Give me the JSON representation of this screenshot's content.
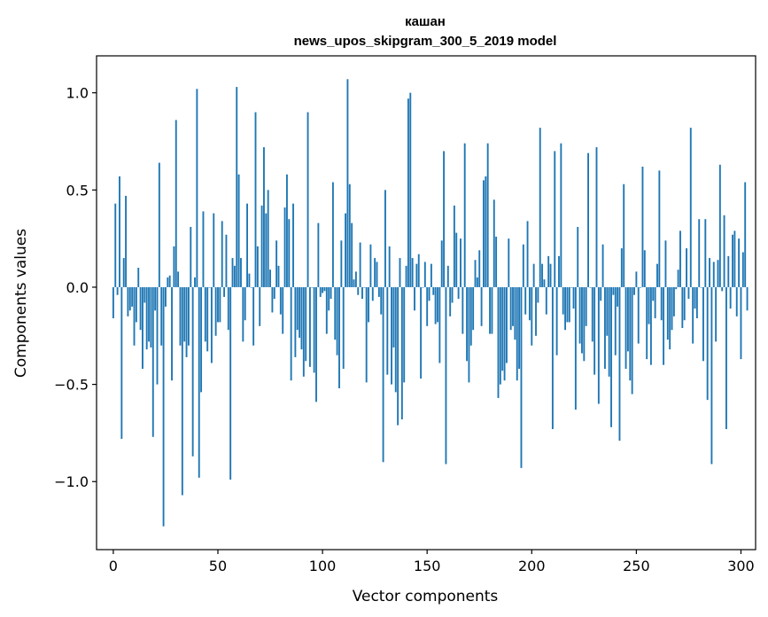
{
  "chart_data": {
    "type": "bar",
    "title_line1": "кашан",
    "title_line2": "news_upos_skipgram_300_5_2019 model",
    "xlabel": "Vector components",
    "ylabel": "Components values",
    "xlim": [
      -8,
      307
    ],
    "ylim": [
      -1.35,
      1.19
    ],
    "xticks": [
      0,
      50,
      100,
      150,
      200,
      250,
      300
    ],
    "xtick_labels": [
      "0",
      "50",
      "100",
      "150",
      "200",
      "250",
      "300"
    ],
    "yticks": [
      -1.0,
      -0.5,
      0.0,
      0.5,
      1.0
    ],
    "ytick_labels": [
      "−1.0",
      "−0.5",
      "0.0",
      "0.5",
      "1.0"
    ],
    "color": "#1f77b4",
    "values": [
      -0.16,
      0.43,
      -0.04,
      0.57,
      -0.78,
      0.15,
      0.47,
      -0.15,
      -0.12,
      -0.1,
      -0.3,
      -0.18,
      0.1,
      -0.22,
      -0.42,
      -0.08,
      -0.32,
      -0.28,
      -0.31,
      -0.77,
      -0.12,
      -0.5,
      0.64,
      -0.3,
      -1.23,
      -0.1,
      0.05,
      0.06,
      -0.48,
      0.21,
      0.86,
      0.08,
      -0.3,
      -1.07,
      -0.28,
      -0.36,
      -0.3,
      0.31,
      -0.87,
      0.05,
      1.02,
      -0.98,
      -0.54,
      0.39,
      -0.28,
      -0.33,
      0.0,
      -0.39,
      0.38,
      -0.25,
      -0.18,
      -0.18,
      0.34,
      -0.05,
      0.27,
      -0.22,
      -0.99,
      0.15,
      0.11,
      1.03,
      0.58,
      0.15,
      -0.28,
      -0.17,
      0.43,
      0.07,
      0.0,
      -0.3,
      0.9,
      0.21,
      -0.2,
      0.42,
      0.72,
      0.38,
      0.5,
      0.09,
      -0.13,
      -0.06,
      0.24,
      0.11,
      -0.14,
      -0.24,
      0.41,
      0.58,
      0.35,
      -0.48,
      0.43,
      -0.36,
      -0.22,
      -0.26,
      -0.32,
      -0.46,
      -0.38,
      0.9,
      -0.41,
      0.0,
      -0.44,
      -0.59,
      0.33,
      -0.05,
      -0.03,
      -0.02,
      -0.24,
      -0.12,
      -0.06,
      0.54,
      -0.27,
      -0.35,
      -0.52,
      0.24,
      -0.42,
      0.38,
      1.07,
      0.53,
      0.33,
      0.04,
      0.08,
      -0.04,
      0.23,
      -0.06,
      0.0,
      -0.49,
      -0.18,
      0.22,
      -0.07,
      0.15,
      0.13,
      -0.05,
      -0.14,
      -0.9,
      0.5,
      -0.45,
      0.21,
      -0.5,
      -0.31,
      -0.54,
      -0.71,
      0.15,
      -0.68,
      -0.49,
      0.11,
      0.97,
      1.0,
      0.15,
      -0.12,
      0.12,
      0.17,
      -0.47,
      0.0,
      0.13,
      -0.2,
      -0.07,
      0.12,
      -0.04,
      -0.19,
      -0.18,
      -0.39,
      0.24,
      0.7,
      -0.91,
      0.11,
      -0.15,
      -0.08,
      0.42,
      0.28,
      -0.06,
      0.25,
      -0.24,
      0.74,
      -0.38,
      -0.49,
      -0.3,
      -0.22,
      0.14,
      0.05,
      0.19,
      -0.2,
      0.55,
      0.57,
      0.74,
      -0.24,
      -0.24,
      0.45,
      0.26,
      -0.57,
      -0.5,
      -0.43,
      -0.48,
      -0.39,
      0.25,
      -0.22,
      -0.2,
      -0.27,
      -0.48,
      -0.42,
      -0.93,
      0.22,
      -0.14,
      0.34,
      -0.17,
      -0.3,
      0.12,
      -0.25,
      -0.08,
      0.82,
      0.12,
      0.04,
      -0.14,
      0.16,
      0.12,
      -0.73,
      0.7,
      -0.35,
      0.16,
      0.74,
      -0.14,
      -0.22,
      -0.18,
      -0.18,
      0.0,
      -0.11,
      -0.63,
      0.31,
      -0.29,
      -0.34,
      -0.38,
      -0.2,
      0.69,
      0.0,
      -0.28,
      -0.45,
      0.72,
      -0.6,
      -0.07,
      0.22,
      -0.42,
      -0.25,
      -0.46,
      -0.72,
      -0.04,
      -0.35,
      -0.1,
      -0.79,
      0.2,
      0.53,
      -0.42,
      -0.33,
      -0.48,
      -0.55,
      -0.04,
      0.08,
      -0.29,
      0.0,
      0.62,
      0.19,
      -0.37,
      -0.19,
      -0.4,
      -0.07,
      -0.16,
      0.12,
      0.6,
      -0.17,
      -0.4,
      0.24,
      -0.27,
      -0.32,
      -0.22,
      -0.15,
      -0.01,
      0.09,
      0.29,
      -0.21,
      -0.17,
      0.2,
      -0.06,
      0.82,
      -0.29,
      -0.11,
      -0.16,
      0.35,
      0.0,
      -0.38,
      0.35,
      -0.58,
      0.15,
      -0.91,
      0.13,
      -0.28,
      0.14,
      0.63,
      -0.02,
      0.37,
      -0.73,
      0.16,
      -0.11,
      0.27,
      0.29,
      -0.15,
      0.25,
      -0.37,
      0.18,
      0.54,
      -0.12
    ]
  }
}
